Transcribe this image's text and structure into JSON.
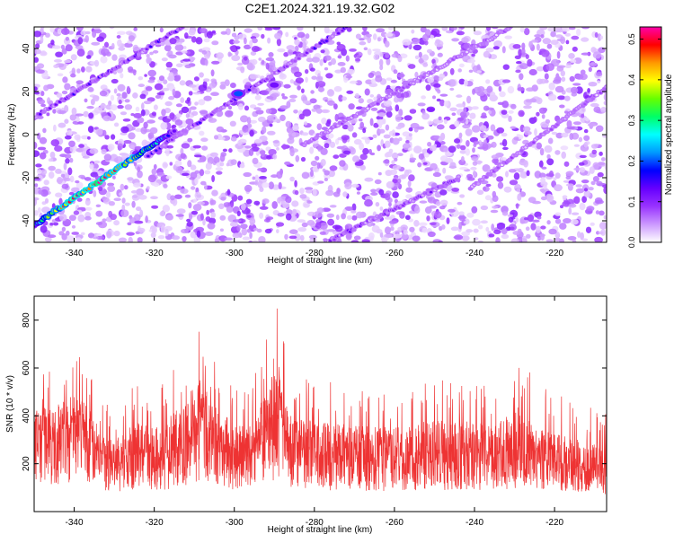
{
  "title": "C2E1.2024.321.19.32.G02",
  "chart_data": [
    {
      "type": "heatmap",
      "name": "spectrogram",
      "xlabel": "Height of straight line (km)",
      "ylabel": "Frequency (Hz)",
      "xlim": [
        -350,
        -207
      ],
      "ylim": [
        -50,
        50
      ],
      "xticks": [
        -340,
        -320,
        -300,
        -280,
        -260,
        -240,
        -220
      ],
      "yticks": [
        -40,
        -20,
        0,
        20,
        40
      ],
      "grid": false,
      "colorbar": {
        "label": "Normalized spectral amplitude",
        "range": [
          0.0,
          0.53
        ],
        "ticks": [
          0.0,
          0.1,
          0.2,
          0.3,
          0.4,
          0.5
        ],
        "colormap": [
          "#ffffff",
          "#cc99ff",
          "#9933ff",
          "#6600ff",
          "#0000ff",
          "#0099ff",
          "#00ffff",
          "#00ff66",
          "#66ff00",
          "#ffff00",
          "#ff9900",
          "#ff0000",
          "#ff00aa"
        ]
      },
      "ridges": [
        {
          "x": [
            -350,
            -315
          ],
          "y": [
            -42,
            2
          ],
          "peak_amplitude": 0.52
        },
        {
          "x": [
            -350,
            -313
          ],
          "y": [
            8,
            50
          ],
          "peak_amplitude": 0.15
        },
        {
          "x": [
            -322,
            -272
          ],
          "y": [
            -10,
            50
          ],
          "peak_amplitude": 0.15
        },
        {
          "x": [
            -277,
            -244
          ],
          "y": [
            -50,
            -20
          ],
          "peak_amplitude": 0.12
        },
        {
          "x": [
            -283,
            -231
          ],
          "y": [
            -5,
            50
          ],
          "peak_amplitude": 0.08
        },
        {
          "x": [
            -241,
            -207
          ],
          "y": [
            -25,
            22
          ],
          "peak_amplitude": 0.08
        }
      ],
      "hotspots": [
        {
          "x": -299,
          "y": 19,
          "amplitude": 0.2
        },
        {
          "x": -290,
          "y": 23,
          "amplitude": 0.12
        }
      ]
    },
    {
      "type": "line",
      "name": "snr",
      "xlabel": "Height of straight line (km)",
      "ylabel": "SNR (10 * v/v)",
      "xlim": [
        -350,
        -207
      ],
      "ylim": [
        0,
        900
      ],
      "xticks": [
        -340,
        -320,
        -300,
        -280,
        -260,
        -240,
        -220
      ],
      "yticks": [
        200,
        400,
        600,
        800
      ],
      "grid": false,
      "color": "#ee3333",
      "envelope": {
        "x": [
          -350,
          -345,
          -340,
          -337,
          -334,
          -330,
          -325,
          -320,
          -316,
          -312,
          -309,
          -305,
          -300,
          -296,
          -292,
          -289,
          -286,
          -282,
          -278,
          -270,
          -260,
          -250,
          -240,
          -235,
          -229,
          -225,
          -220,
          -214,
          -207
        ],
        "mean": [
          310,
          300,
          360,
          330,
          240,
          210,
          230,
          240,
          250,
          280,
          390,
          300,
          240,
          230,
          330,
          420,
          270,
          240,
          230,
          210,
          230,
          240,
          240,
          220,
          260,
          210,
          200,
          180,
          160
        ],
        "max": [
          560,
          620,
          650,
          640,
          500,
          420,
          550,
          500,
          600,
          700,
          820,
          640,
          540,
          520,
          720,
          890,
          560,
          560,
          560,
          540,
          500,
          560,
          540,
          520,
          680,
          540,
          500,
          450,
          420
        ]
      }
    }
  ]
}
